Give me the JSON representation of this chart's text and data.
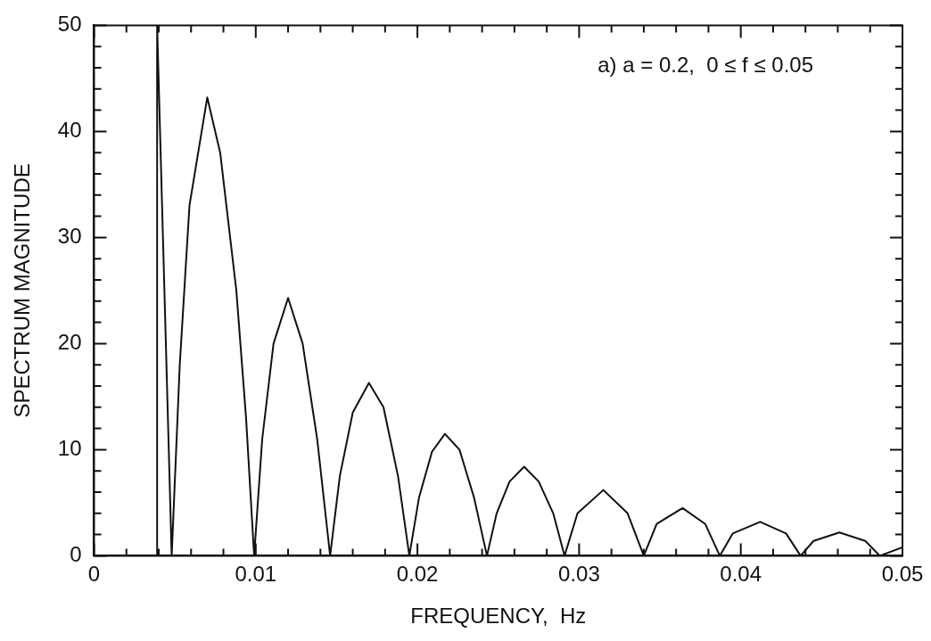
{
  "chart_data": {
    "type": "line",
    "xlabel": "FREQUENCY,  Hz",
    "ylabel": "SPECTRUM MAGNITUDE",
    "annotations": [
      "a) a = 0.2,  0 ≤ f ≤ 0.05"
    ],
    "xlim": [
      0,
      0.05
    ],
    "ylim": [
      0,
      50
    ],
    "xticks": [
      {
        "value": 0,
        "label": "0"
      },
      {
        "value": 0.002,
        "label": null
      },
      {
        "value": 0.004,
        "label": null
      },
      {
        "value": 0.006,
        "label": null
      },
      {
        "value": 0.008,
        "label": null
      },
      {
        "value": 0.01,
        "label": "0.01"
      },
      {
        "value": 0.012,
        "label": null
      },
      {
        "value": 0.014,
        "label": null
      },
      {
        "value": 0.016,
        "label": null
      },
      {
        "value": 0.018,
        "label": null
      },
      {
        "value": 0.02,
        "label": "0.02"
      },
      {
        "value": 0.022,
        "label": null
      },
      {
        "value": 0.024,
        "label": null
      },
      {
        "value": 0.026,
        "label": null
      },
      {
        "value": 0.028,
        "label": null
      },
      {
        "value": 0.03,
        "label": "0.03"
      },
      {
        "value": 0.032,
        "label": null
      },
      {
        "value": 0.034,
        "label": null
      },
      {
        "value": 0.036,
        "label": null
      },
      {
        "value": 0.038,
        "label": null
      },
      {
        "value": 0.04,
        "label": "0.04"
      },
      {
        "value": 0.042,
        "label": null
      },
      {
        "value": 0.044,
        "label": null
      },
      {
        "value": 0.046,
        "label": null
      },
      {
        "value": 0.048,
        "label": null
      },
      {
        "value": 0.05,
        "label": "0.05"
      }
    ],
    "yticks": [
      0,
      {
        "value": 2,
        "label": null
      },
      {
        "value": 4,
        "label": null
      },
      {
        "value": 6,
        "label": null
      },
      {
        "value": 8,
        "label": null
      },
      10,
      {
        "value": 12,
        "label": null
      },
      {
        "value": 14,
        "label": null
      },
      {
        "value": 16,
        "label": null
      },
      {
        "value": 18,
        "label": null
      },
      20,
      {
        "value": 22,
        "label": null
      },
      {
        "value": 24,
        "label": null
      },
      {
        "value": 26,
        "label": null
      },
      {
        "value": 28,
        "label": null
      },
      30,
      {
        "value": 32,
        "label": null
      },
      {
        "value": 34,
        "label": null
      },
      {
        "value": 36,
        "label": null
      },
      {
        "value": 38,
        "label": null
      },
      40,
      {
        "value": 42,
        "label": null
      },
      {
        "value": 44,
        "label": null
      },
      {
        "value": 46,
        "label": null
      },
      {
        "value": 48,
        "label": null
      },
      50
    ],
    "grid": false,
    "legend": false,
    "marker": "none",
    "line_style": "solid",
    "series": [
      {
        "color": "#111111",
        "x": [
          0,
          0.0039,
          0.0039,
          0.0048,
          0.0053,
          0.0059,
          0.007,
          0.0078,
          0.0088,
          0.0094,
          0.0099,
          0.0104,
          0.0111,
          0.012,
          0.0129,
          0.0138,
          0.0146,
          0.0152,
          0.016,
          0.017,
          0.0179,
          0.0188,
          0.0195,
          0.0201,
          0.0209,
          0.0217,
          0.0226,
          0.0235,
          0.0243,
          0.0249,
          0.0257,
          0.0266,
          0.0275,
          0.0284,
          0.0291,
          0.0299,
          0.0315,
          0.033,
          0.034,
          0.0348,
          0.0364,
          0.0378,
          0.0387,
          0.0395,
          0.0412,
          0.0428,
          0.0437,
          0.0445,
          0.0461,
          0.0477,
          0.0486,
          0.05
        ],
        "values": [
          0,
          0,
          50,
          0,
          18,
          33,
          43.2,
          38,
          25,
          13,
          0,
          11,
          20,
          24.3,
          20,
          11,
          0,
          7.5,
          13.5,
          16.3,
          14,
          7.5,
          0,
          5.5,
          9.8,
          11.5,
          10,
          5.5,
          0,
          4,
          7,
          8.4,
          7,
          4,
          0,
          4,
          6.2,
          4,
          0,
          3,
          4.5,
          3,
          0,
          2.1,
          3.2,
          2.1,
          0,
          1.4,
          2.2,
          1.4,
          0,
          0.8
        ]
      }
    ]
  }
}
